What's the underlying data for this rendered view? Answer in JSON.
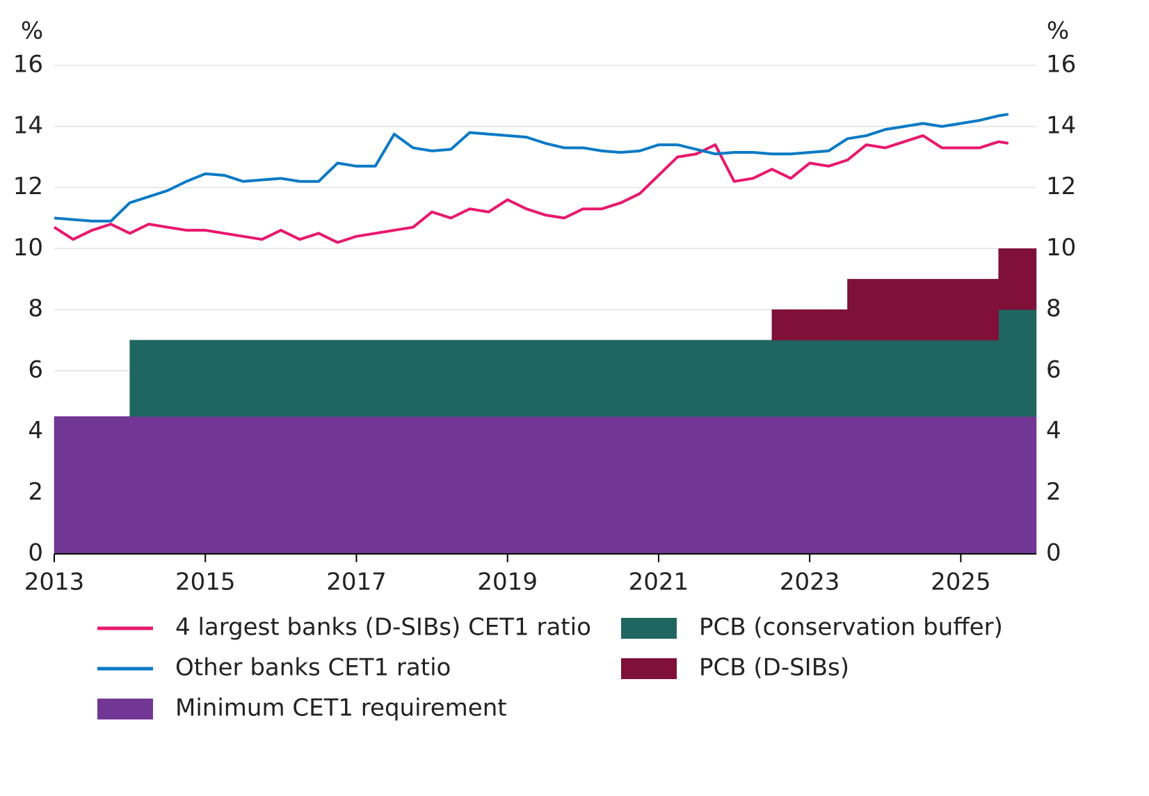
{
  "chart_data": {
    "type": "line",
    "y_unit": "%",
    "y2_unit": "%",
    "xlim": [
      2013,
      2026
    ],
    "xticks": [
      2013,
      2015,
      2017,
      2019,
      2021,
      2023,
      2025
    ],
    "ylim": [
      0,
      16
    ],
    "yticks": [
      0,
      2,
      4,
      6,
      8,
      10,
      12,
      14,
      16
    ],
    "y2lim": [
      0,
      16
    ],
    "y2ticks": [
      0,
      2,
      4,
      6,
      8,
      10,
      12,
      14,
      16
    ],
    "grid": true,
    "x": [
      2013,
      2013.25,
      2013.5,
      2013.75,
      2014,
      2014.25,
      2014.5,
      2014.75,
      2015,
      2015.25,
      2015.5,
      2015.75,
      2016,
      2016.25,
      2016.5,
      2016.75,
      2017,
      2017.25,
      2017.5,
      2017.75,
      2018,
      2018.25,
      2018.5,
      2018.75,
      2019,
      2019.25,
      2019.5,
      2019.75,
      2020,
      2020.25,
      2020.5,
      2020.75,
      2021,
      2021.25,
      2021.5,
      2021.75,
      2022,
      2022.25,
      2022.5,
      2022.75,
      2023,
      2023.25,
      2023.5,
      2023.75,
      2024,
      2024.25,
      2024.5,
      2024.75,
      2025,
      2025.25,
      2025.5,
      2025.63
    ],
    "series": [
      {
        "name": "4 largest banks (D-SIBs) CET1 ratio",
        "color": "#e8186d",
        "values": [
          10.7,
          10.3,
          10.6,
          10.8,
          10.5,
          10.8,
          10.7,
          10.6,
          10.6,
          10.5,
          10.4,
          10.3,
          10.6,
          10.3,
          10.5,
          10.2,
          10.4,
          10.5,
          10.6,
          10.7,
          11.2,
          11.0,
          11.3,
          11.2,
          11.6,
          11.3,
          11.1,
          11.0,
          11.3,
          11.3,
          11.5,
          11.8,
          12.4,
          13.0,
          13.1,
          13.4,
          12.2,
          12.3,
          12.6,
          12.3,
          12.8,
          12.7,
          12.9,
          13.4,
          13.3,
          13.5,
          13.7,
          13.3,
          13.3,
          13.3,
          13.5,
          13.45
        ]
      },
      {
        "name": "Other banks CET1 ratio",
        "color": "#0a7ac4",
        "values": [
          11.0,
          10.95,
          10.9,
          10.9,
          11.5,
          11.7,
          11.9,
          12.2,
          12.45,
          12.4,
          12.2,
          12.25,
          12.3,
          12.2,
          12.2,
          12.8,
          12.7,
          12.7,
          13.75,
          13.3,
          13.2,
          13.25,
          13.8,
          13.75,
          13.7,
          13.65,
          13.45,
          13.3,
          13.3,
          13.2,
          13.15,
          13.2,
          13.4,
          13.4,
          13.25,
          13.1,
          13.15,
          13.15,
          13.1,
          13.1,
          13.15,
          13.2,
          13.6,
          13.7,
          13.9,
          14.0,
          14.1,
          14.0,
          14.1,
          14.2,
          14.35,
          14.4
        ]
      }
    ],
    "areas": [
      {
        "name": "Minimum CET1 requirement",
        "color": "#723694",
        "bins": [
          2013,
          2014,
          2022.5,
          2023.5,
          2025.5,
          2026
        ],
        "values": [
          4.5,
          4.5,
          4.5,
          4.5,
          4.5
        ]
      },
      {
        "name": "PCB (conservation buffer)",
        "color": "#1f6660",
        "bins": [
          2013,
          2014,
          2022.5,
          2023.5,
          2025.5,
          2026
        ],
        "values": [
          0,
          2.5,
          2.5,
          2.5,
          3.5
        ]
      },
      {
        "name": "PCB (D-SIBs)",
        "color": "#7f1038",
        "bins": [
          2013,
          2014,
          2022.5,
          2023.5,
          2025.5,
          2026
        ],
        "values": [
          0,
          0,
          1,
          2,
          2
        ]
      }
    ]
  }
}
